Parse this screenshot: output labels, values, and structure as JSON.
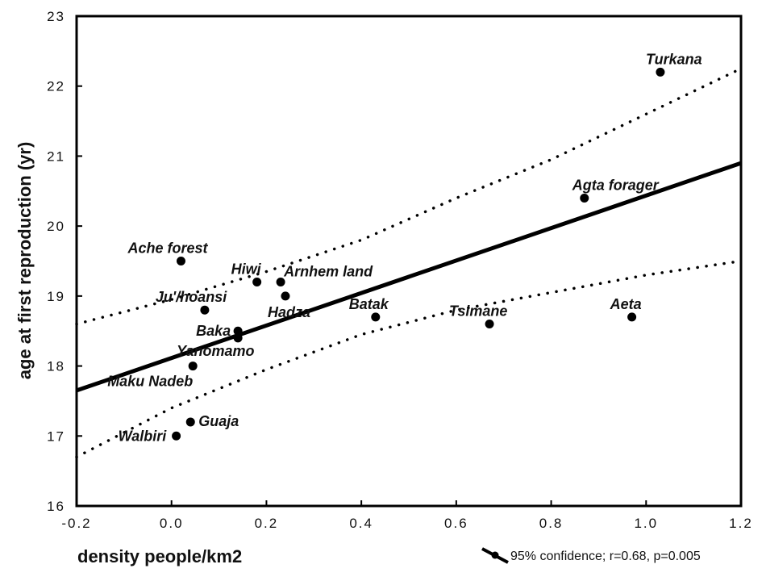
{
  "chart_data": {
    "type": "scatter",
    "title": "",
    "xlabel": "density people/km2",
    "ylabel": "age at first reproduction (yr)",
    "xlim": [
      -0.2,
      1.2
    ],
    "ylim": [
      16,
      23
    ],
    "xticks": [
      "-0.2",
      "0.0",
      "0.2",
      "0.4",
      "0.6",
      "0.8",
      "1.0",
      "1.2"
    ],
    "xtick_values": [
      -0.2,
      0.0,
      0.2,
      0.4,
      0.6,
      0.8,
      1.0,
      1.2
    ],
    "yticks": [
      "16",
      "17",
      "18",
      "19",
      "20",
      "21",
      "22",
      "23"
    ],
    "ytick_values": [
      16,
      17,
      18,
      19,
      20,
      21,
      22,
      23
    ],
    "points": [
      {
        "label": "Turkana",
        "x": 1.03,
        "y": 22.2
      },
      {
        "label": "Agta forager",
        "x": 0.87,
        "y": 20.4
      },
      {
        "label": "Aeta",
        "x": 0.97,
        "y": 18.7
      },
      {
        "label": "Tsimane",
        "x": 0.67,
        "y": 18.6
      },
      {
        "label": "Batak",
        "x": 0.43,
        "y": 18.7
      },
      {
        "label": "Ache forest",
        "x": 0.02,
        "y": 19.5
      },
      {
        "label": "Hiwi",
        "x": 0.18,
        "y": 19.2
      },
      {
        "label": "Arnhem land",
        "x": 0.23,
        "y": 19.2
      },
      {
        "label": "Hadza",
        "x": 0.24,
        "y": 19.0
      },
      {
        "label": "Ju'/hoansi",
        "x": 0.07,
        "y": 18.8
      },
      {
        "label": "Baka",
        "x": 0.14,
        "y": 18.5
      },
      {
        "label": "Yanomamo",
        "x": 0.14,
        "y": 18.4
      },
      {
        "label": "Maku Nadeb",
        "x": 0.045,
        "y": 18.0
      },
      {
        "label": "Guaja",
        "x": 0.04,
        "y": 17.2
      },
      {
        "label": "Walbiri",
        "x": 0.01,
        "y": 17.0
      }
    ],
    "regression": {
      "x": [
        -0.2,
        1.2
      ],
      "y": [
        17.65,
        20.9
      ]
    },
    "confidence_band": {
      "x": [
        -0.2,
        0.0,
        0.2,
        0.4,
        0.6,
        0.8,
        1.0,
        1.2
      ],
      "upper": [
        18.6,
        18.95,
        19.35,
        19.8,
        20.4,
        20.95,
        21.6,
        22.25
      ],
      "lower": [
        16.7,
        17.4,
        17.95,
        18.45,
        18.8,
        19.05,
        19.3,
        19.5
      ]
    },
    "legend": {
      "text": "95% confidence; r=0.68, p=0.005",
      "placement": "bottom-right"
    },
    "grid": false
  }
}
